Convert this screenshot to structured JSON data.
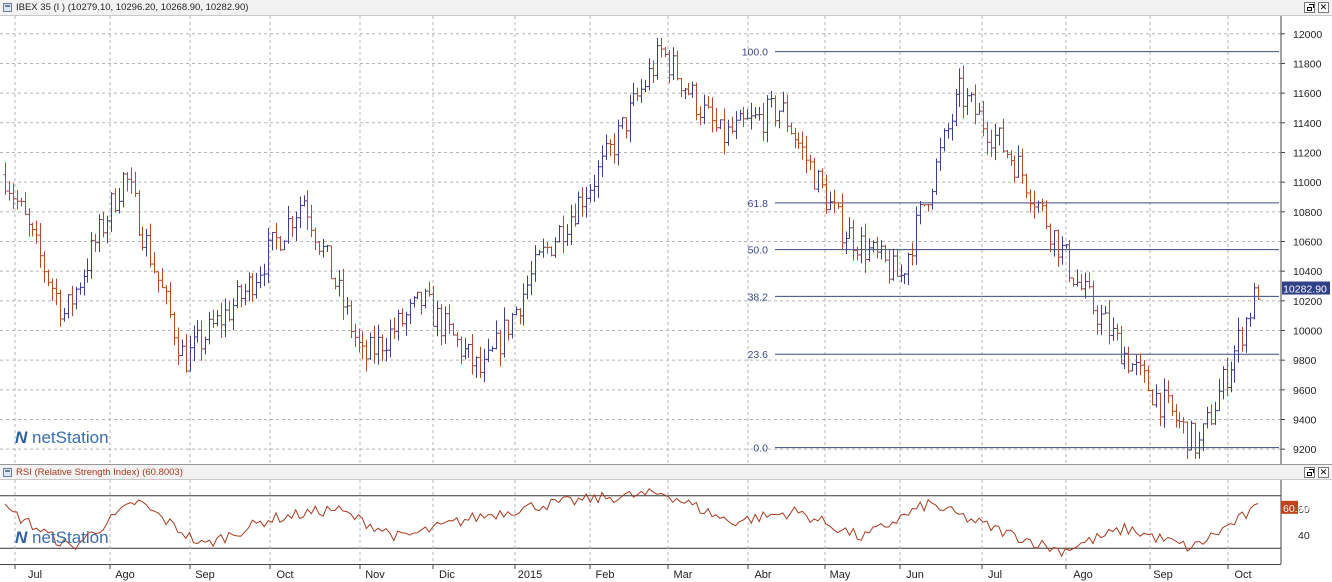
{
  "main_chart": {
    "title": "IBEX 35 (I ) (10279.10, 10296.20, 10268.90, 10282.90)",
    "price_axis_labels": [
      "12000",
      "11800",
      "11600",
      "11400",
      "11200",
      "11000",
      "10800",
      "10600",
      "10400",
      "10200",
      "10000",
      "9800",
      "9600",
      "9400",
      "9200"
    ],
    "last_price_label": "10282.90",
    "fib_labels": [
      "100.0",
      "61.8",
      "50.0",
      "38.2",
      "23.6",
      "0.0"
    ],
    "logo_text": "netStation",
    "colors": {
      "up_bar": "#3b3f8f",
      "down_bar": "#b84a2a",
      "fib_line": "#3b4a8a",
      "price_tag": "#2f3f88"
    }
  },
  "rsi_panel": {
    "title": "RSI (Relative Strength Index) (60.8003)",
    "axis_labels": [
      "60",
      "40"
    ],
    "current_value_label": "60.80",
    "logo_text": "netStation",
    "colors": {
      "line": "#a83a1e",
      "value_tag": "#c0441e"
    }
  },
  "time_axis": {
    "labels": [
      "Jul",
      "Ago",
      "Sep",
      "Oct",
      "Nov",
      "Dic",
      "2015",
      "Feb",
      "Mar",
      "Abr",
      "May",
      "Jun",
      "Jul",
      "Ago",
      "Sep",
      "Oct"
    ]
  },
  "window_buttons": {
    "restore_icon": "restore-icon",
    "close_icon": "close-icon"
  },
  "chart_data": [
    {
      "type": "candlestick",
      "title": "IBEX 35 (I ) (10279.10, 10296.20, 10268.90, 10282.90)",
      "x_categories": [
        "Jul",
        "Ago",
        "Sep",
        "Oct",
        "Nov",
        "Dic",
        "2015",
        "Feb",
        "Mar",
        "Abr",
        "May",
        "Jun",
        "Jul",
        "Ago",
        "Sep",
        "Oct"
      ],
      "ylim": [
        9100,
        12120
      ],
      "last_close": 10282.9,
      "swing_high": 11880,
      "swing_low": 9210,
      "fibonacci_retracement": [
        {
          "level": "100.0",
          "price": 11880
        },
        {
          "level": "61.8",
          "price": 10860
        },
        {
          "level": "50.0",
          "price": 10545
        },
        {
          "level": "38.2",
          "price": 10230
        },
        {
          "level": "23.6",
          "price": 9840
        },
        {
          "level": "0.0",
          "price": 9210
        }
      ],
      "approx_path": [
        {
          "month": "Jul",
          "price": 11050
        },
        {
          "month": "Ago",
          "price": 10100
        },
        {
          "month": "Sep",
          "price": 11050
        },
        {
          "month": "Oct",
          "price": 9800
        },
        {
          "month": "Nov",
          "price": 10250
        },
        {
          "month": "Dic",
          "price": 10900
        },
        {
          "month": "Dic",
          "price": 9800
        },
        {
          "month": "2015",
          "price": 10200
        },
        {
          "month": "2015",
          "price": 9700
        },
        {
          "month": "Feb",
          "price": 10500
        },
        {
          "month": "Mar",
          "price": 11100
        },
        {
          "month": "Abr",
          "price": 11880
        },
        {
          "month": "May",
          "price": 11300
        },
        {
          "month": "Jun",
          "price": 11500
        },
        {
          "month": "Jun",
          "price": 10700
        },
        {
          "month": "Jul",
          "price": 10350
        },
        {
          "month": "Jul",
          "price": 11600
        },
        {
          "month": "Ago",
          "price": 11100
        },
        {
          "month": "Ago",
          "price": 10300
        },
        {
          "month": "Sep",
          "price": 9700
        },
        {
          "month": "Oct",
          "price": 9210
        },
        {
          "month": "Oct",
          "price": 10283
        }
      ],
      "grid": true
    },
    {
      "type": "line",
      "title": "RSI (Relative Strength Index) (60.8003)",
      "ylim": [
        20,
        80
      ],
      "reference_lines": [
        70,
        30
      ],
      "current": 60.8003,
      "approx_path": [
        {
          "month": "Jul",
          "value": 60
        },
        {
          "month": "Ago",
          "value": 30
        },
        {
          "month": "Sep",
          "value": 66
        },
        {
          "month": "Oct",
          "value": 32
        },
        {
          "month": "Nov",
          "value": 52
        },
        {
          "month": "Dic",
          "value": 60
        },
        {
          "month": "Dic",
          "value": 38
        },
        {
          "month": "2015",
          "value": 52
        },
        {
          "month": "Feb",
          "value": 62
        },
        {
          "month": "Mar",
          "value": 68
        },
        {
          "month": "Abr",
          "value": 72
        },
        {
          "month": "May",
          "value": 50
        },
        {
          "month": "Jun",
          "value": 58
        },
        {
          "month": "Jul",
          "value": 38
        },
        {
          "month": "Jul",
          "value": 64
        },
        {
          "month": "Ago",
          "value": 45
        },
        {
          "month": "Sep",
          "value": 28
        },
        {
          "month": "Sep",
          "value": 45
        },
        {
          "month": "Oct",
          "value": 30
        },
        {
          "month": "Oct",
          "value": 60.8
        }
      ]
    }
  ]
}
